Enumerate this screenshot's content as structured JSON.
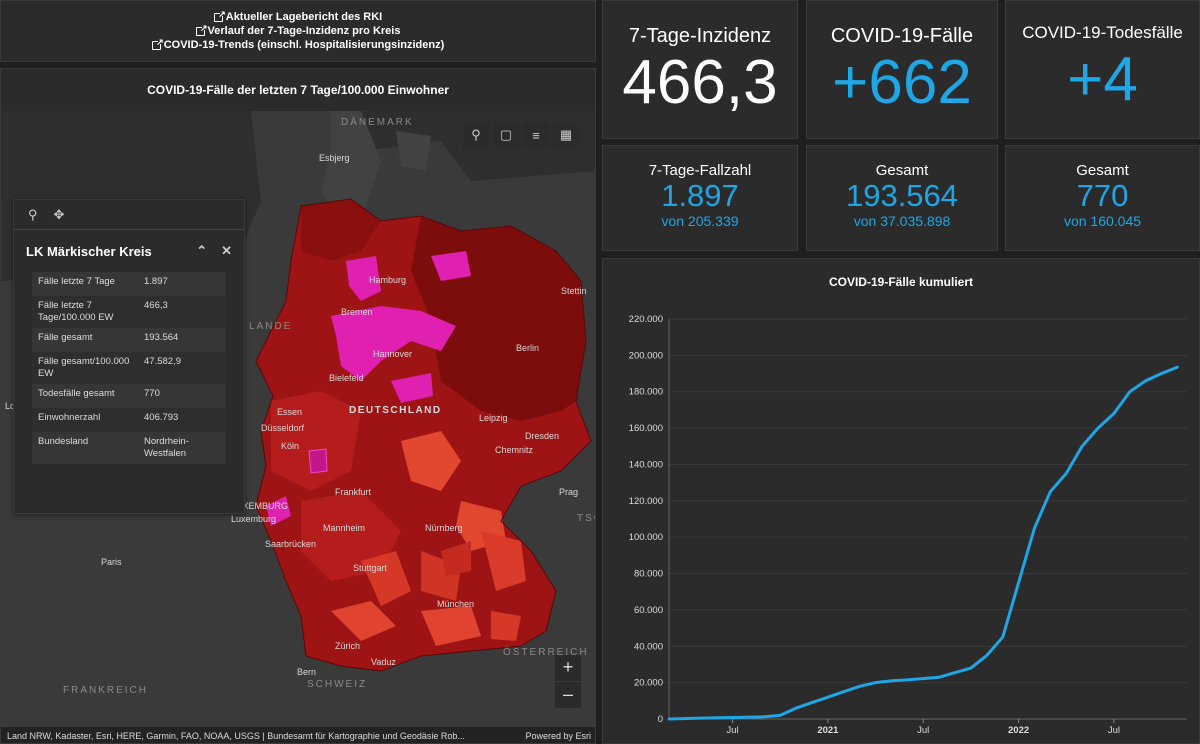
{
  "links": [
    "Aktueller Lagebericht des RKI",
    "Verlauf der 7-Tage-Inzidenz pro Kreis",
    "COVID-19-Trends (einschl. Hospitalisierungsinzidenz)"
  ],
  "map": {
    "title": "COVID-19-Fälle der letzten 7 Tage/100.000 Einwohner",
    "labels": {
      "daenemark": "DÄNEMARK",
      "esbjerg": "Esbjerg",
      "hamburg": "Hamburg",
      "bremen": "Bremen",
      "stettin": "Stettin",
      "hannover": "Hannover",
      "berlin": "Berlin",
      "bielefeld": "Bielefeld",
      "deutschland": "DEUTSCHLAND",
      "essen": "Essen",
      "duesseldorf": "Düsseldorf",
      "leipzig": "Leipzig",
      "koeln": "Köln",
      "dresden": "Dresden",
      "chemnitz": "Chemnitz",
      "frankfurt": "Frankfurt",
      "prag": "Prag",
      "luxemburg_c": "LUXEMBURG",
      "luxemburg": "Luxemburg",
      "tsc": "TSC",
      "mannheim": "Mannheim",
      "nuernberg": "Nürnberg",
      "saarbruecken": "Saarbrücken",
      "paris": "Paris",
      "stuttgart": "Stuttgart",
      "muenchen": "München",
      "zuerich": "Zürich",
      "oesterreich": "ÖSTERREICH",
      "vaduz": "Vaduz",
      "bern": "Bern",
      "schweiz": "SCHWEIZ",
      "frankreich": "FRANKREICH",
      "lande": "LANDE",
      "lo": "Lo"
    },
    "attribution": "Land NRW, Kadaster, Esri, HERE, Garmin, FAO, NOAA, USGS | Bundesamt für Kartographie und Geodäsie Rob...",
    "powered": "Powered by Esri",
    "zoom_in": "+",
    "zoom_out": "–"
  },
  "popup": {
    "title": "LK Märkischer Kreis",
    "rows": [
      {
        "k": "Fälle letzte 7 Tage",
        "v": "1.897"
      },
      {
        "k": "Fälle letzte 7 Tage/100.000 EW",
        "v": "466,3"
      },
      {
        "k": "Fälle gesamt",
        "v": "193.564"
      },
      {
        "k": "Fälle gesamt/100.000 EW",
        "v": "47.582,9"
      },
      {
        "k": "Todesfälle gesamt",
        "v": "770"
      },
      {
        "k": "Einwohnerzahl",
        "v": "406.793"
      },
      {
        "k": "Bundesland",
        "v": "Nordrhein-Westfalen"
      }
    ]
  },
  "kpis": {
    "inzidenz": {
      "title": "7-Tage-Inzidenz",
      "value": "466,3"
    },
    "faelle": {
      "title": "COVID-19-Fälle",
      "value": "+662"
    },
    "tode": {
      "title": "COVID-19-Todesfälle",
      "value": "+4"
    },
    "fallzahl": {
      "title": "7-Tage-Fallzahl",
      "value": "1.897",
      "sub": "von 205.339"
    },
    "faelle_gesamt": {
      "title": "Gesamt",
      "value": "193.564",
      "sub": "von 37.035.898"
    },
    "tode_gesamt": {
      "title": "Gesamt",
      "value": "770",
      "sub": "von 160.045"
    }
  },
  "colors": {
    "accent": "#1ea6e6",
    "map_dark": "#8b1010",
    "map_mid": "#b01818",
    "map_light": "#e0402e",
    "map_magenta": "#e020b0"
  },
  "chart_data": {
    "type": "line",
    "title": "COVID-19-Fälle kumuliert",
    "ylim": [
      0,
      220000
    ],
    "yticks": [
      "0",
      "20.000",
      "40.000",
      "60.000",
      "80.000",
      "100.000",
      "120.000",
      "140.000",
      "160.000",
      "180.000",
      "200.000",
      "220.000"
    ],
    "xticks": [
      "Jul",
      "2021",
      "Jul",
      "2022",
      "Jul"
    ],
    "xrange": [
      "2020-03",
      "2022-11"
    ],
    "series": [
      {
        "x": [
          "2020-03",
          "2020-05",
          "2020-07",
          "2020-09",
          "2020-10",
          "2020-11",
          "2020-12",
          "2021-01",
          "2021-02",
          "2021-03",
          "2021-04",
          "2021-05",
          "2021-06",
          "2021-08",
          "2021-10",
          "2021-11",
          "2021-12",
          "2022-01",
          "2022-02",
          "2022-03",
          "2022-04",
          "2022-05",
          "2022-06",
          "2022-07",
          "2022-08",
          "2022-09",
          "2022-10",
          "2022-11"
        ],
        "values": [
          0,
          500,
          800,
          1200,
          2000,
          6000,
          9000,
          12000,
          15000,
          18000,
          20000,
          21000,
          21500,
          23000,
          28000,
          35000,
          45000,
          75000,
          105000,
          125000,
          135000,
          150000,
          160000,
          168000,
          180000,
          186000,
          190000,
          193564
        ]
      }
    ]
  }
}
